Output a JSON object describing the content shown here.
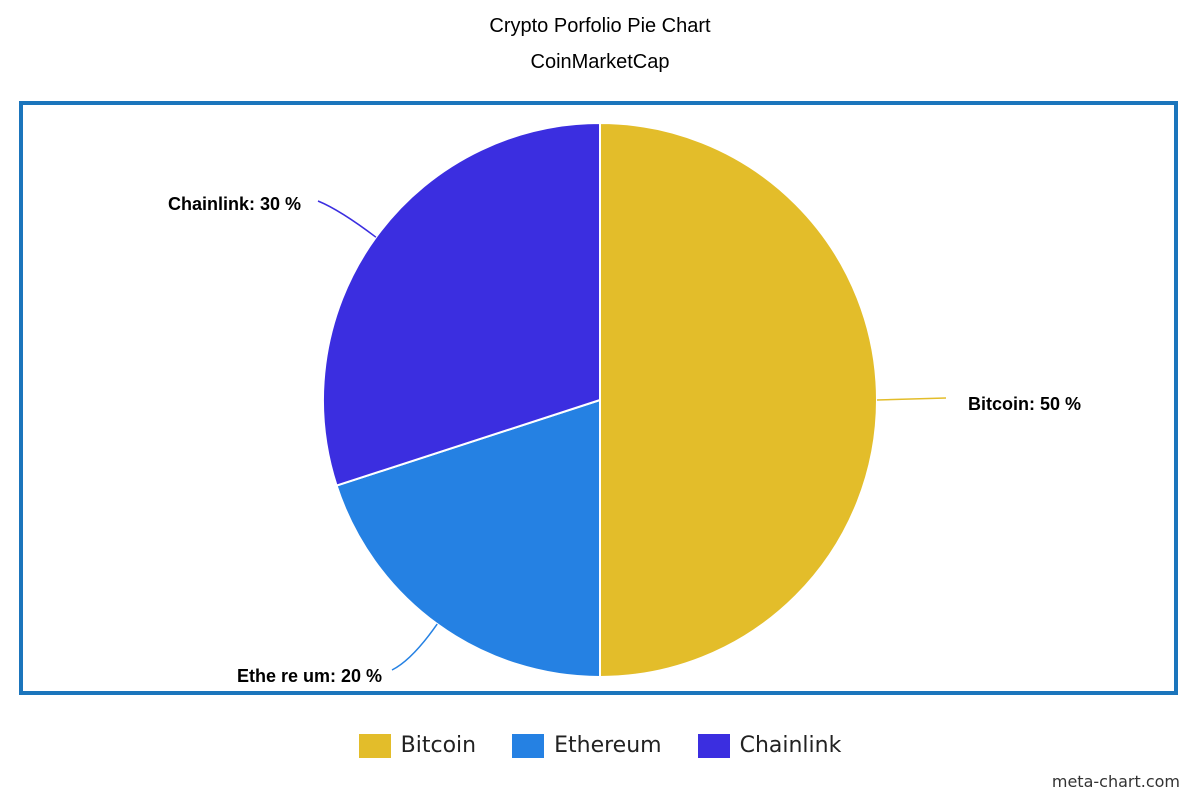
{
  "chart_data": {
    "type": "pie",
    "title": "Crypto Porfolio Pie Chart",
    "subtitle": "CoinMarketCap",
    "slices": [
      {
        "name": "Bitcoin",
        "value": 50,
        "label": "Bitcoin: 50 %",
        "color": "#e3bd2a"
      },
      {
        "name": "Ethereum",
        "value": 20,
        "label": "Ethe re um: 20 %",
        "color": "#2581e3"
      },
      {
        "name": "Chainlink",
        "value": 30,
        "label": "Chainlink: 30 %",
        "color": "#3b2ee0"
      }
    ],
    "legend": [
      "Bitcoin",
      "Ethereum",
      "Chainlink"
    ],
    "legend_position": "bottom"
  },
  "credit": "meta-chart.com"
}
